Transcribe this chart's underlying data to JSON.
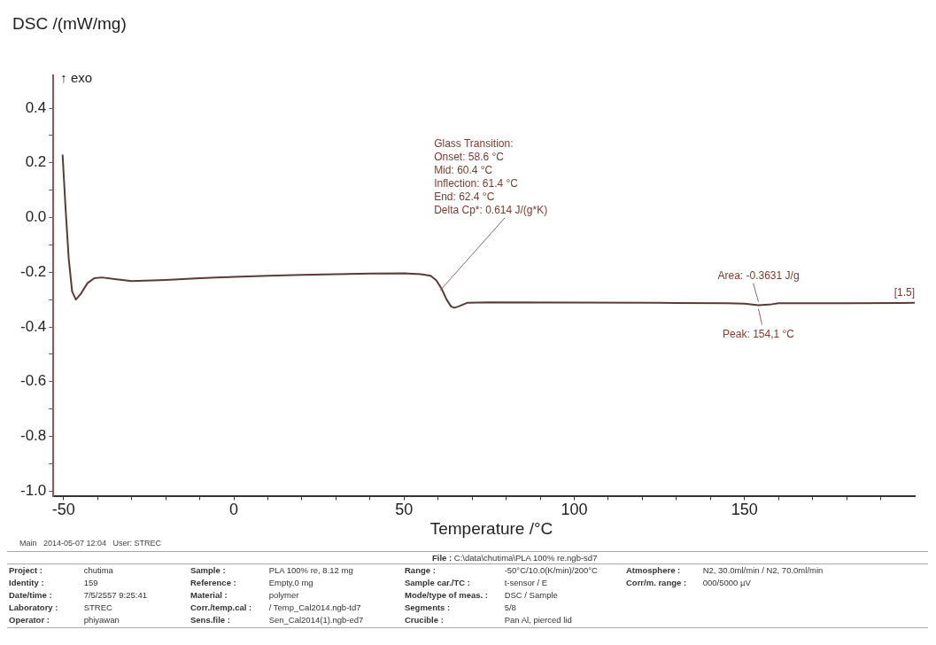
{
  "chart_data": {
    "type": "line",
    "ylabel": "DSC /(mW/mg)",
    "xlabel": "Temperature /°C",
    "x": [
      -50.3,
      -49.5,
      -48.5,
      -47.5,
      -46.4,
      -45,
      -43,
      -41,
      -38.8,
      -35,
      -30,
      -20,
      -10,
      0,
      10,
      20,
      30,
      40,
      50,
      55,
      57.8,
      59.5,
      61,
      62.5,
      63.8,
      64.8,
      66,
      68.5,
      75,
      100,
      125,
      145,
      150,
      154.1,
      158,
      160,
      180,
      200
    ],
    "series": [
      {
        "color": "#5a3a36",
        "values": [
          0.23,
          0.05,
          -0.15,
          -0.27,
          -0.3,
          -0.28,
          -0.24,
          -0.222,
          -0.219,
          -0.225,
          -0.232,
          -0.228,
          -0.222,
          -0.217,
          -0.213,
          -0.21,
          -0.207,
          -0.205,
          -0.204,
          -0.207,
          -0.213,
          -0.23,
          -0.26,
          -0.3,
          -0.325,
          -0.33,
          -0.325,
          -0.312,
          -0.31,
          -0.311,
          -0.312,
          -0.313,
          -0.315,
          -0.321,
          -0.317,
          -0.313,
          -0.313,
          -0.312
        ]
      }
    ],
    "xlim": [
      -53,
      200
    ],
    "ylim": [
      -1.02,
      0.52
    ],
    "xticks": [
      -50,
      {
        "value": -40,
        "label": null
      },
      {
        "value": -30,
        "label": null
      },
      {
        "value": -20,
        "label": null
      },
      {
        "value": -10,
        "label": null
      },
      0,
      {
        "value": 10,
        "label": null
      },
      {
        "value": 20,
        "label": null
      },
      {
        "value": 30,
        "label": null
      },
      {
        "value": 40,
        "label": null
      },
      50,
      {
        "value": 60,
        "label": null
      },
      {
        "value": 70,
        "label": null
      },
      {
        "value": 80,
        "label": null
      },
      {
        "value": 90,
        "label": null
      },
      100,
      {
        "value": 110,
        "label": null
      },
      {
        "value": 120,
        "label": null
      },
      {
        "value": 130,
        "label": null
      },
      {
        "value": 140,
        "label": null
      },
      150,
      {
        "value": 160,
        "label": null
      },
      {
        "value": 170,
        "label": null
      },
      {
        "value": 180,
        "label": null
      },
      {
        "value": 190,
        "label": null
      }
    ],
    "yticks": [
      {
        "value": -1.0,
        "label": "-1.0"
      },
      {
        "value": -0.9,
        "label": null
      },
      -0.8,
      {
        "value": -0.7,
        "label": null
      },
      -0.6,
      {
        "value": -0.5,
        "label": null
      },
      -0.4,
      {
        "value": -0.3,
        "label": null
      },
      -0.2,
      {
        "value": -0.1,
        "label": null
      },
      {
        "value": 0,
        "label": "0.0"
      },
      {
        "value": 0.1,
        "label": null
      },
      0.2,
      {
        "value": 0.3,
        "label": null
      },
      0.4
    ],
    "grid": false,
    "legend": false,
    "marker": "none",
    "line_style": "solid",
    "annotations": [
      "Glass Transition:",
      "Onset: 58.6 °C",
      "Mid: 60.4 °C",
      "Inflection: 61.4 °C",
      "End: 62.4 °C",
      {
        "text": "Delta Cp*: 0.614 J/(g*K)",
        "x": 61.4,
        "y": -0.26
      },
      {
        "text": "Area: -0.3631 J/g",
        "x": 154.1,
        "y": -0.321
      },
      {
        "text": "Peak: 154,1 °C",
        "x": 154.1,
        "y": -0.321
      },
      {
        "text": "[1.5]",
        "x": 200,
        "y": -0.312
      },
      "↑ exo",
      "Main   2014-05-07 12:04   User: STREC",
      "File : C:\\data\\chutima\\PLA 100% re.ngb-sd7",
      "Project : chutima",
      "Identity : 159",
      "Date/time : 7/5/2557 9:25:41",
      "Laboratory : STREC",
      "Operator : phiyawan",
      "Sample : PLA 100% re, 8.12 mg",
      "Reference : Empty,0 mg",
      "Material : polymer",
      "Corr./temp.cal : / Temp_Cal2014.ngb-td7",
      "Sens.file : Sen_Cal2014(1).ngb-ed7",
      "Range : -50°C/10.0(K/min)/200°C",
      "Sample car./TC : t-sensor / E",
      "Mode/type of meas. : DSC / Sample",
      "Segments : 5/8",
      "Crucible : Pan Al, pierced lid",
      "Atmosphere : N2, 30.0ml/min / N2, 70.0ml/min",
      "Corr/m. range : 000/5000 µV"
    ]
  }
}
